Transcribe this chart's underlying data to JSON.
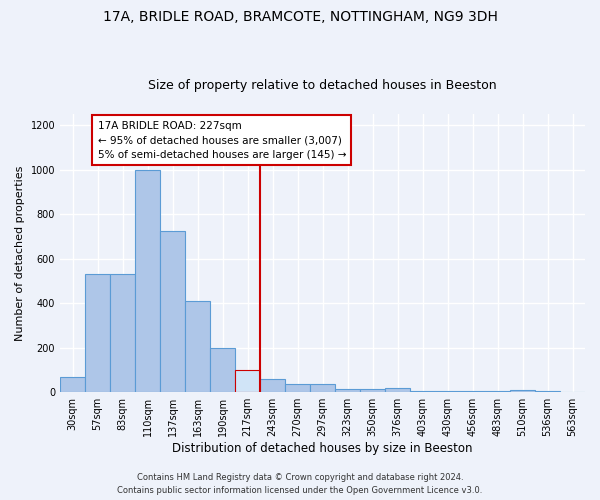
{
  "title1": "17A, BRIDLE ROAD, BRAMCOTE, NOTTINGHAM, NG9 3DH",
  "title2": "Size of property relative to detached houses in Beeston",
  "xlabel": "Distribution of detached houses by size in Beeston",
  "ylabel": "Number of detached properties",
  "categories": [
    "30sqm",
    "57sqm",
    "83sqm",
    "110sqm",
    "137sqm",
    "163sqm",
    "190sqm",
    "217sqm",
    "243sqm",
    "270sqm",
    "297sqm",
    "323sqm",
    "350sqm",
    "376sqm",
    "403sqm",
    "430sqm",
    "456sqm",
    "483sqm",
    "510sqm",
    "536sqm",
    "563sqm"
  ],
  "values": [
    70,
    530,
    530,
    1000,
    725,
    410,
    200,
    100,
    60,
    35,
    35,
    15,
    15,
    20,
    5,
    5,
    5,
    5,
    10,
    5,
    0
  ],
  "bar_color": "#aec6e8",
  "bar_edge_color": "#5b9bd5",
  "highlight_bar_index": 7,
  "highlight_bar_color": "#d0e4f7",
  "highlight_bar_edge_color": "#cc0000",
  "vline_color": "#cc0000",
  "annotation_text": "17A BRIDLE ROAD: 227sqm\n← 95% of detached houses are smaller (3,007)\n5% of semi-detached houses are larger (145) →",
  "annotation_box_color": "#ffffff",
  "annotation_box_edge_color": "#cc0000",
  "ylim": [
    0,
    1250
  ],
  "yticks": [
    0,
    200,
    400,
    600,
    800,
    1000,
    1200
  ],
  "footer1": "Contains HM Land Registry data © Crown copyright and database right 2024.",
  "footer2": "Contains public sector information licensed under the Open Government Licence v3.0.",
  "bg_color": "#eef2fa",
  "grid_color": "#ffffff",
  "title1_fontsize": 10,
  "title2_fontsize": 9,
  "xlabel_fontsize": 8.5,
  "ylabel_fontsize": 8,
  "tick_fontsize": 7,
  "annotation_fontsize": 7.5,
  "footer_fontsize": 6
}
